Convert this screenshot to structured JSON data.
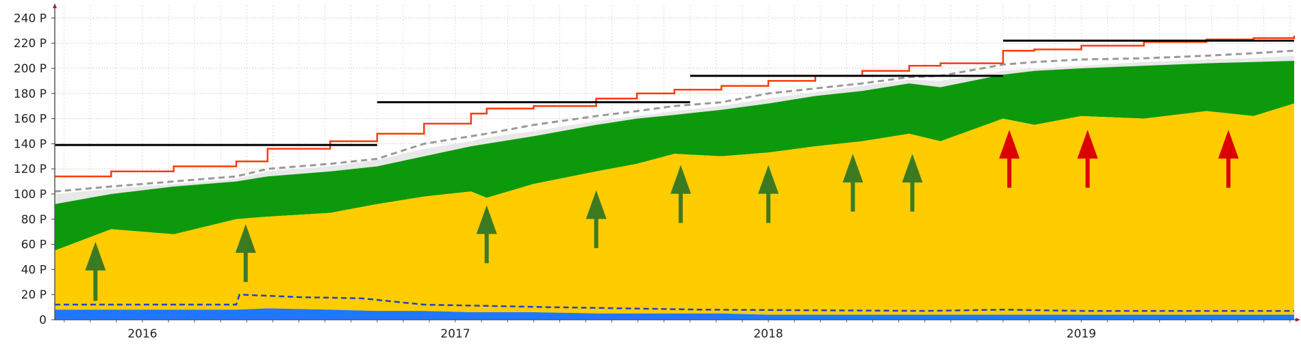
{
  "chart_data": {
    "type": "area",
    "title": "",
    "xlabel": "",
    "ylabel": "",
    "y_unit": "P",
    "ylim": [
      0,
      250
    ],
    "xlim": [
      2015.72,
      2019.68
    ],
    "y_ticks": [
      0,
      20,
      40,
      60,
      80,
      100,
      120,
      140,
      160,
      180,
      200,
      220,
      240
    ],
    "y_tick_labels": [
      "0",
      "20 P",
      "40 P",
      "60 P",
      "80 P",
      "100 P",
      "120 P",
      "140 P",
      "160 P",
      "180 P",
      "200 P",
      "220 P",
      "240 P"
    ],
    "x_tick_labels": [
      {
        "label": "2016",
        "x": 2016.0
      },
      {
        "label": "2017",
        "x": 2017.0
      },
      {
        "label": "2018",
        "x": 2018.0
      },
      {
        "label": "2019",
        "x": 2019.0
      }
    ],
    "grid": true,
    "legend": "none",
    "colors": {
      "blue_area": "#1f78ff",
      "yellow_area": "#ffcc00",
      "green_area": "#0c9a0c",
      "white_band": "#e8e8e8",
      "red_line": "#ff3a0a",
      "gray_dashed": "#999999",
      "blue_dashed": "#1f3fcc",
      "black_segment": "#000000",
      "green_arrow": "#3c7a22",
      "red_arrow": "#dd0000",
      "grid": "#e4c8c8",
      "axis": "#555555"
    },
    "x": [
      2015.72,
      2015.9,
      2016.1,
      2016.3,
      2016.4,
      2016.6,
      2016.75,
      2016.9,
      2017.05,
      2017.1,
      2017.25,
      2017.45,
      2017.58,
      2017.7,
      2017.85,
      2018.0,
      2018.15,
      2018.3,
      2018.45,
      2018.55,
      2018.75,
      2018.85,
      2019.0,
      2019.2,
      2019.4,
      2019.55,
      2019.68
    ],
    "series": [
      {
        "key": "blue_area",
        "values": [
          8,
          8,
          8,
          8,
          9,
          8,
          7,
          7,
          6,
          6,
          6,
          5,
          5,
          5,
          5,
          4,
          4,
          4,
          4,
          4,
          4,
          4,
          4,
          4,
          4,
          4,
          4
        ]
      },
      {
        "key": "yellow_area",
        "values": [
          55,
          72,
          68,
          80,
          82,
          85,
          92,
          98,
          102,
          97,
          108,
          118,
          124,
          132,
          130,
          133,
          138,
          142,
          148,
          142,
          160,
          155,
          162,
          160,
          166,
          162,
          172
        ]
      },
      {
        "key": "green_area",
        "values": [
          92,
          100,
          106,
          110,
          114,
          118,
          122,
          130,
          138,
          140,
          146,
          155,
          160,
          163,
          167,
          172,
          178,
          182,
          188,
          185,
          195,
          198,
          200,
          202,
          204,
          205,
          206
        ]
      },
      {
        "key": "white_band",
        "values": [
          100,
          104,
          108,
          112,
          118,
          122,
          127,
          136,
          142,
          145,
          150,
          158,
          162,
          166,
          170,
          176,
          181,
          186,
          191,
          190,
          198,
          200,
          202,
          205,
          207,
          208,
          210
        ]
      },
      {
        "key": "gray_dashed",
        "values": [
          102,
          106,
          110,
          114,
          120,
          124,
          128,
          140,
          146,
          148,
          155,
          162,
          166,
          170,
          173,
          180,
          184,
          188,
          193,
          194,
          203,
          205,
          207,
          208,
          210,
          212,
          214
        ]
      },
      {
        "key": "red_line",
        "values": [
          114,
          118,
          122,
          126,
          136,
          142,
          148,
          156,
          164,
          168,
          170,
          176,
          180,
          183,
          186,
          190,
          194,
          198,
          202,
          204,
          214,
          215,
          218,
          221,
          223,
          224,
          226
        ]
      },
      {
        "key": "blue_dashed",
        "x": [
          2015.72,
          2016.3,
          2016.31,
          2016.5,
          2016.7,
          2016.9,
          2017.3,
          2017.8,
          2018.5,
          2018.75,
          2019.0,
          2019.68
        ],
        "values": [
          12,
          12,
          20,
          18,
          17,
          12,
          10,
          8,
          7,
          8,
          7,
          7
        ]
      }
    ],
    "horizontal_segments": [
      {
        "x0": 2015.72,
        "x1": 2016.75,
        "y": 139
      },
      {
        "x0": 2016.75,
        "x1": 2017.75,
        "y": 173
      },
      {
        "x0": 2017.75,
        "x1": 2018.75,
        "y": 194
      },
      {
        "x0": 2018.75,
        "x1": 2019.68,
        "y": 222
      }
    ],
    "arrows": [
      {
        "x": 2015.85,
        "y_from": 15,
        "y_to": 62,
        "color": "green"
      },
      {
        "x": 2016.33,
        "y_from": 30,
        "y_to": 76,
        "color": "green"
      },
      {
        "x": 2017.1,
        "y_from": 45,
        "y_to": 91,
        "color": "green"
      },
      {
        "x": 2017.45,
        "y_from": 57,
        "y_to": 103,
        "color": "green"
      },
      {
        "x": 2017.72,
        "y_from": 77,
        "y_to": 123,
        "color": "green"
      },
      {
        "x": 2018.0,
        "y_from": 77,
        "y_to": 123,
        "color": "green"
      },
      {
        "x": 2018.27,
        "y_from": 86,
        "y_to": 132,
        "color": "green"
      },
      {
        "x": 2018.46,
        "y_from": 86,
        "y_to": 132,
        "color": "green"
      },
      {
        "x": 2018.77,
        "y_from": 105,
        "y_to": 151,
        "color": "red"
      },
      {
        "x": 2019.02,
        "y_from": 105,
        "y_to": 151,
        "color": "red"
      },
      {
        "x": 2019.47,
        "y_from": 105,
        "y_to": 151,
        "color": "red"
      }
    ]
  }
}
